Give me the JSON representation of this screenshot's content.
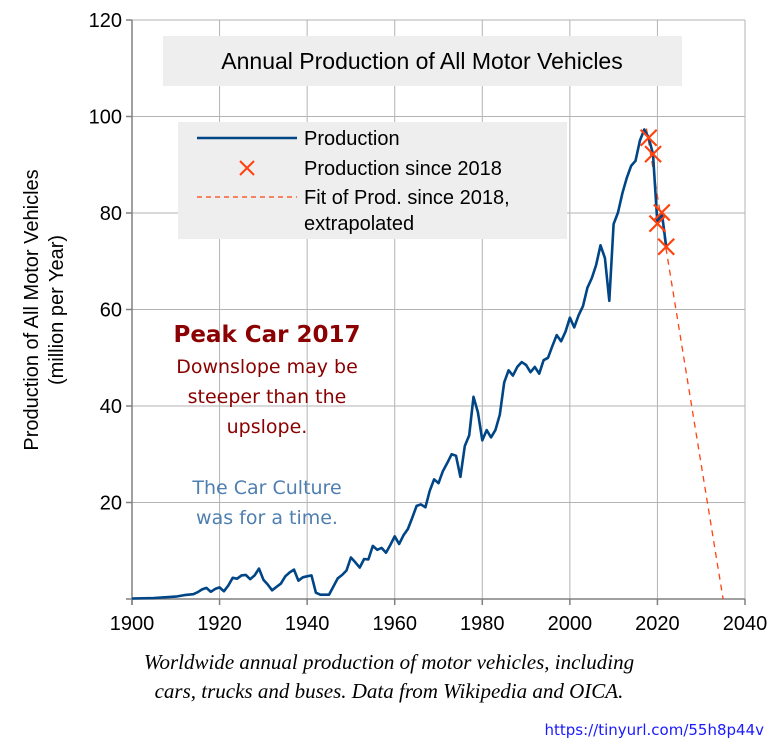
{
  "chart_data": {
    "type": "line",
    "title": "Annual Production of All Motor Vehicles",
    "xlabel": "",
    "ylabel": "Production of All Motor Vehicles\n(million per Year)",
    "ylabel_lines": [
      "Production of All Motor Vehicles",
      "(million per Year)"
    ],
    "xlim": [
      1900,
      2040
    ],
    "ylim": [
      0,
      120
    ],
    "x_ticks": [
      1900,
      1920,
      1940,
      1960,
      1980,
      2000,
      2020,
      2040
    ],
    "y_ticks": [
      20,
      40,
      60,
      80,
      100,
      120
    ],
    "grid": true,
    "legend_position": "top-left",
    "legend": [
      {
        "label_lines": [
          "Production"
        ],
        "style": "solid-line",
        "color": "#004586"
      },
      {
        "label_lines": [
          "Production since 2018"
        ],
        "style": "x-marker",
        "color": "#ff420e"
      },
      {
        "label_lines": [
          "Fit of Prod. since 2018,",
          "extrapolated"
        ],
        "style": "dashed-line",
        "color": "#ff420e"
      }
    ],
    "series": [
      {
        "name": "Production",
        "color": "#004586",
        "x": [
          1900,
          1905,
          1910,
          1912,
          1914,
          1915,
          1916,
          1917,
          1918,
          1919,
          1920,
          1921,
          1922,
          1923,
          1924,
          1925,
          1926,
          1927,
          1928,
          1929,
          1930,
          1931,
          1932,
          1933,
          1934,
          1935,
          1936,
          1937,
          1938,
          1939,
          1940,
          1941,
          1942,
          1943,
          1944,
          1945,
          1946,
          1947,
          1948,
          1949,
          1950,
          1951,
          1952,
          1953,
          1954,
          1955,
          1956,
          1957,
          1958,
          1959,
          1960,
          1961,
          1962,
          1963,
          1964,
          1965,
          1966,
          1967,
          1968,
          1969,
          1970,
          1971,
          1972,
          1973,
          1974,
          1975,
          1976,
          1977,
          1978,
          1979,
          1980,
          1981,
          1982,
          1983,
          1984,
          1985,
          1986,
          1987,
          1988,
          1989,
          1990,
          1991,
          1992,
          1993,
          1994,
          1995,
          1996,
          1997,
          1998,
          1999,
          2000,
          2001,
          2002,
          2003,
          2004,
          2005,
          2006,
          2007,
          2008,
          2009,
          2010,
          2011,
          2012,
          2013,
          2014,
          2015,
          2016,
          2017,
          2018,
          2019,
          2020,
          2021,
          2022
        ],
        "values": [
          0.1,
          0.2,
          0.5,
          0.8,
          1.0,
          1.4,
          2.0,
          2.3,
          1.5,
          2.1,
          2.4,
          1.6,
          2.8,
          4.4,
          4.2,
          4.9,
          5.0,
          4.1,
          4.9,
          6.3,
          4.0,
          3.0,
          1.8,
          2.5,
          3.2,
          4.7,
          5.5,
          6.1,
          3.8,
          4.5,
          4.7,
          4.9,
          1.3,
          0.9,
          0.9,
          0.9,
          2.6,
          4.3,
          5.0,
          5.9,
          8.6,
          7.6,
          6.5,
          8.3,
          8.2,
          11.0,
          10.2,
          10.6,
          9.6,
          11.2,
          13.0,
          11.4,
          13.2,
          14.5,
          16.8,
          19.3,
          19.6,
          19.0,
          22.4,
          24.8,
          24.0,
          26.5,
          28.2,
          30.0,
          29.7,
          25.3,
          31.7,
          33.9,
          41.9,
          38.7,
          32.9,
          35.0,
          33.5,
          35.0,
          38.2,
          44.9,
          47.4,
          46.3,
          48.1,
          49.1,
          48.5,
          47.0,
          48.1,
          46.7,
          49.5,
          50.0,
          52.4,
          54.7,
          53.4,
          55.4,
          58.3,
          56.3,
          58.8,
          60.7,
          64.5,
          66.5,
          69.2,
          73.3,
          70.7,
          61.8,
          77.7,
          80.1,
          84.1,
          87.3,
          89.8,
          90.8,
          95.0,
          97.3,
          95.6,
          92.2,
          77.8,
          80.1,
          73.0
        ]
      },
      {
        "name": "Production since 2018",
        "color": "#ff420e",
        "marker": "x",
        "x": [
          2018,
          2019,
          2020,
          2021,
          2022
        ],
        "values": [
          95.6,
          92.2,
          77.8,
          80.1,
          73.0
        ]
      },
      {
        "name": "Fit of Prod. since 2018, extrapolated",
        "color": "#ff420e",
        "style": "dashed",
        "x": [
          2017.5,
          2035
        ],
        "values": [
          97.5,
          0
        ]
      }
    ],
    "annotations": [
      {
        "text": "Peak Car 2017",
        "color": "#8b0000",
        "weight": "bold"
      },
      {
        "text": "Downslope may be",
        "color": "#8b0000"
      },
      {
        "text": "steeper than the",
        "color": "#8b0000"
      },
      {
        "text": "upslope.",
        "color": "#8b0000"
      },
      {
        "text": "The Car Culture",
        "color": "#4f7fb0"
      },
      {
        "text": "was for a time.",
        "color": "#4f7fb0"
      }
    ]
  },
  "caption": {
    "line1": "Worldwide annual production of motor vehicles, including",
    "line2": "cars, trucks and buses. Data from Wikipedia and OICA."
  },
  "source_link": "https://tinyurl.com/55h8p44v"
}
